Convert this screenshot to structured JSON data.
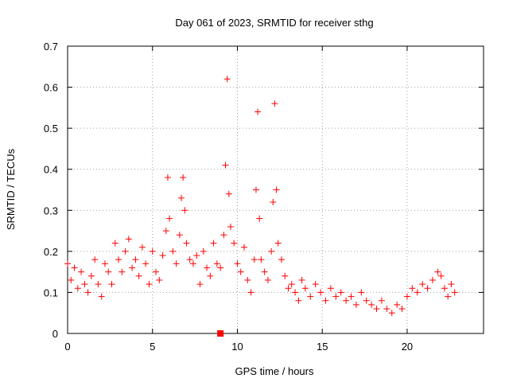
{
  "chart_data": {
    "type": "scatter",
    "title": "Day 061 of 2023, SRMTID for receiver sthg",
    "xlabel": "GPS time / hours",
    "ylabel": "SRMTID / TECUs",
    "xlim": [
      0,
      24.5
    ],
    "ylim": [
      0,
      0.7
    ],
    "xticks": [
      0,
      5,
      10,
      15,
      20
    ],
    "xtick_labels": [
      "0",
      "5",
      "10",
      "15",
      "20"
    ],
    "yticks": [
      0,
      0.1,
      0.2,
      0.3,
      0.4,
      0.5,
      0.6,
      0.7
    ],
    "ytick_labels": [
      "0",
      "0.1",
      "0.2",
      "0.3",
      "0.4",
      "0.5",
      "0.6",
      "0.7"
    ],
    "grid": true,
    "marker": "plus",
    "color": "#ff0000",
    "series": [
      {
        "name": "SRMTID",
        "x": [
          0.0,
          0.2,
          0.4,
          0.6,
          0.8,
          1.0,
          1.2,
          1.4,
          1.6,
          1.8,
          2.0,
          2.2,
          2.4,
          2.6,
          2.8,
          3.0,
          3.2,
          3.4,
          3.6,
          3.8,
          4.0,
          4.2,
          4.4,
          4.6,
          4.8,
          5.0,
          5.2,
          5.4,
          5.6,
          5.8,
          5.9,
          6.0,
          6.2,
          6.4,
          6.6,
          6.7,
          6.8,
          6.9,
          7.0,
          7.2,
          7.4,
          7.6,
          7.8,
          8.0,
          8.2,
          8.4,
          8.6,
          8.8,
          9.0,
          9.2,
          9.3,
          9.4,
          9.5,
          9.6,
          9.8,
          10.0,
          10.2,
          10.4,
          10.6,
          10.8,
          11.0,
          11.1,
          11.2,
          11.3,
          11.4,
          11.6,
          11.8,
          12.0,
          12.1,
          12.2,
          12.3,
          12.4,
          12.6,
          12.8,
          13.0,
          13.2,
          13.4,
          13.6,
          13.8,
          14.0,
          14.3,
          14.6,
          14.9,
          15.2,
          15.5,
          15.8,
          16.1,
          16.4,
          16.7,
          17.0,
          17.3,
          17.6,
          17.9,
          18.2,
          18.5,
          18.8,
          19.1,
          19.4,
          19.7,
          20.0,
          20.3,
          20.6,
          20.9,
          21.2,
          21.5,
          21.8,
          22.0,
          22.2,
          22.4,
          22.6,
          22.8
        ],
        "y": [
          0.17,
          0.13,
          0.16,
          0.11,
          0.15,
          0.12,
          0.1,
          0.14,
          0.18,
          0.12,
          0.09,
          0.17,
          0.15,
          0.12,
          0.22,
          0.18,
          0.15,
          0.2,
          0.23,
          0.16,
          0.18,
          0.14,
          0.21,
          0.17,
          0.12,
          0.2,
          0.15,
          0.13,
          0.19,
          0.25,
          0.38,
          0.28,
          0.2,
          0.17,
          0.24,
          0.33,
          0.38,
          0.3,
          0.22,
          0.18,
          0.17,
          0.19,
          0.12,
          0.2,
          0.16,
          0.14,
          0.22,
          0.17,
          0.16,
          0.24,
          0.41,
          0.62,
          0.34,
          0.26,
          0.22,
          0.17,
          0.15,
          0.21,
          0.13,
          0.1,
          0.18,
          0.35,
          0.54,
          0.28,
          0.18,
          0.15,
          0.13,
          0.2,
          0.32,
          0.56,
          0.35,
          0.22,
          0.18,
          0.14,
          0.11,
          0.12,
          0.1,
          0.08,
          0.13,
          0.11,
          0.09,
          0.12,
          0.1,
          0.08,
          0.11,
          0.09,
          0.1,
          0.08,
          0.09,
          0.07,
          0.1,
          0.08,
          0.07,
          0.06,
          0.08,
          0.06,
          0.05,
          0.07,
          0.06,
          0.09,
          0.11,
          0.1,
          0.12,
          0.11,
          0.13,
          0.15,
          0.14,
          0.11,
          0.09,
          0.12,
          0.1
        ]
      }
    ],
    "marker_points": [
      {
        "x": 9.0,
        "y": 0.0,
        "shape": "square"
      }
    ]
  }
}
